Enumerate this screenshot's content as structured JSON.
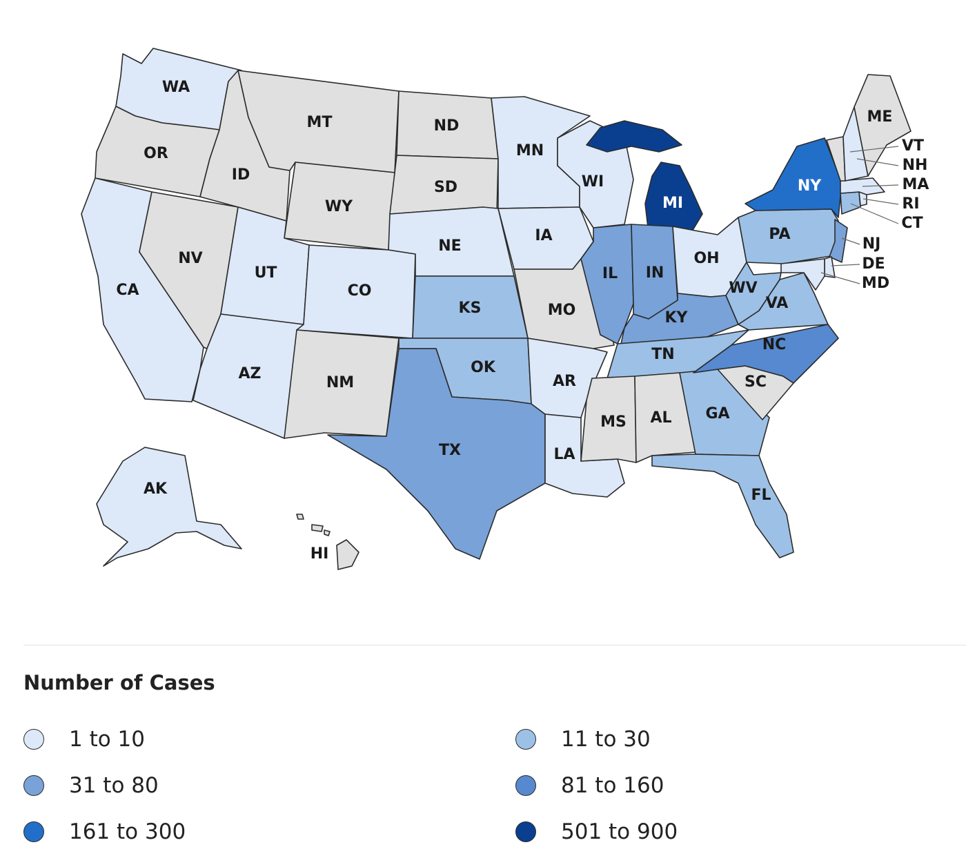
{
  "colors": {
    "none": "#e0e0e0",
    "b1": "#dde8f8",
    "b2": "#9dc0e6",
    "b3": "#78a2d8",
    "b4": "#5689cf",
    "b5": "#226fca",
    "b6": "#0a3f8f"
  },
  "states": [
    {
      "code": "WA",
      "label": "WA",
      "bucket": "b1"
    },
    {
      "code": "OR",
      "label": "OR",
      "bucket": "none"
    },
    {
      "code": "CA",
      "label": "CA",
      "bucket": "b1"
    },
    {
      "code": "NV",
      "label": "NV",
      "bucket": "none"
    },
    {
      "code": "ID",
      "label": "ID",
      "bucket": "none"
    },
    {
      "code": "MT",
      "label": "MT",
      "bucket": "none"
    },
    {
      "code": "WY",
      "label": "WY",
      "bucket": "none"
    },
    {
      "code": "UT",
      "label": "UT",
      "bucket": "b1"
    },
    {
      "code": "AZ",
      "label": "AZ",
      "bucket": "b1"
    },
    {
      "code": "CO",
      "label": "CO",
      "bucket": "b1"
    },
    {
      "code": "NM",
      "label": "NM",
      "bucket": "none"
    },
    {
      "code": "ND",
      "label": "ND",
      "bucket": "none"
    },
    {
      "code": "SD",
      "label": "SD",
      "bucket": "none"
    },
    {
      "code": "NE",
      "label": "NE",
      "bucket": "b1"
    },
    {
      "code": "KS",
      "label": "KS",
      "bucket": "b2"
    },
    {
      "code": "OK",
      "label": "OK",
      "bucket": "b2"
    },
    {
      "code": "TX",
      "label": "TX",
      "bucket": "b3"
    },
    {
      "code": "MN",
      "label": "MN",
      "bucket": "b1"
    },
    {
      "code": "IA",
      "label": "IA",
      "bucket": "b1"
    },
    {
      "code": "MO",
      "label": "MO",
      "bucket": "none"
    },
    {
      "code": "AR",
      "label": "AR",
      "bucket": "b1"
    },
    {
      "code": "LA",
      "label": "LA",
      "bucket": "b1"
    },
    {
      "code": "WI",
      "label": "WI",
      "bucket": "b1"
    },
    {
      "code": "IL",
      "label": "IL",
      "bucket": "b3"
    },
    {
      "code": "MI",
      "label": "MI",
      "bucket": "b6"
    },
    {
      "code": "IN",
      "label": "IN",
      "bucket": "b3"
    },
    {
      "code": "OH",
      "label": "OH",
      "bucket": "b1"
    },
    {
      "code": "KY",
      "label": "KY",
      "bucket": "b3"
    },
    {
      "code": "TN",
      "label": "TN",
      "bucket": "b2"
    },
    {
      "code": "MS",
      "label": "MS",
      "bucket": "none"
    },
    {
      "code": "AL",
      "label": "AL",
      "bucket": "none"
    },
    {
      "code": "GA",
      "label": "GA",
      "bucket": "b2"
    },
    {
      "code": "FL",
      "label": "FL",
      "bucket": "b2"
    },
    {
      "code": "SC",
      "label": "SC",
      "bucket": "none"
    },
    {
      "code": "NC",
      "label": "NC",
      "bucket": "b4"
    },
    {
      "code": "VA",
      "label": "VA",
      "bucket": "b2"
    },
    {
      "code": "WV",
      "label": "WV",
      "bucket": "b2"
    },
    {
      "code": "PA",
      "label": "PA",
      "bucket": "b2"
    },
    {
      "code": "NY",
      "label": "NY",
      "bucket": "b5"
    },
    {
      "code": "NJ",
      "label": "NJ",
      "bucket": "b3"
    },
    {
      "code": "DE",
      "label": "DE",
      "bucket": "b1"
    },
    {
      "code": "MD",
      "label": "MD",
      "bucket": "b1"
    },
    {
      "code": "CT",
      "label": "CT",
      "bucket": "b2"
    },
    {
      "code": "RI",
      "label": "RI",
      "bucket": "b1"
    },
    {
      "code": "MA",
      "label": "MA",
      "bucket": "b1"
    },
    {
      "code": "VT",
      "label": "VT",
      "bucket": "none"
    },
    {
      "code": "NH",
      "label": "NH",
      "bucket": "b1"
    },
    {
      "code": "ME",
      "label": "ME",
      "bucket": "none"
    },
    {
      "code": "AK",
      "label": "AK",
      "bucket": "b1"
    },
    {
      "code": "HI",
      "label": "HI",
      "bucket": "none"
    }
  ],
  "legend": {
    "title": "Number of Cases",
    "items": [
      {
        "label": "1 to 10",
        "bucket": "b1"
      },
      {
        "label": "11 to 30",
        "bucket": "b2"
      },
      {
        "label": "31 to 80",
        "bucket": "b3"
      },
      {
        "label": "81 to 160",
        "bucket": "b4"
      },
      {
        "label": "161 to 300",
        "bucket": "b5"
      },
      {
        "label": "501 to 900",
        "bucket": "b6"
      }
    ]
  }
}
